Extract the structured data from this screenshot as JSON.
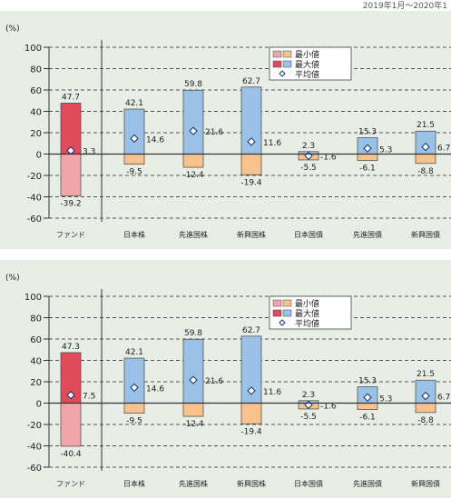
{
  "header_note": "2019年1月〜2020年1",
  "chart_data": [
    {
      "type": "bar",
      "unit_label": "(%)",
      "y_ticks": [
        100,
        80,
        60,
        40,
        20,
        0,
        -20,
        -40,
        -60
      ],
      "ylim": [
        -60,
        100
      ],
      "categories": [
        "ファンド",
        "日本株",
        "先進国株",
        "新興国株",
        "日本国債",
        "先進国債",
        "新興国債"
      ],
      "series": [
        {
          "name": "最大値",
          "values": [
            47.7,
            42.1,
            59.8,
            62.7,
            2.3,
            15.3,
            21.5
          ]
        },
        {
          "name": "最小値",
          "values": [
            -39.2,
            -9.5,
            -12.4,
            -19.4,
            -5.5,
            -6.1,
            -8.8
          ]
        },
        {
          "name": "平均値",
          "values": [
            3.3,
            14.6,
            21.6,
            11.6,
            -1.6,
            5.3,
            6.7
          ]
        }
      ],
      "max_labels": [
        "47.7",
        "42.1",
        "59.8",
        "62.7",
        "2.3",
        "15.3",
        "21.5"
      ],
      "min_labels": [
        "-39.2",
        "-9.5",
        "-12.4",
        "-19.4",
        "-5.5",
        "-6.1",
        "-8.8"
      ],
      "avg_labels": [
        "3.3",
        "14.6",
        "21.6",
        "11.6",
        "-1.6",
        "5.3",
        "6.7"
      ],
      "legend": {
        "position": "top-right",
        "entries": [
          "最小値",
          "最大値",
          "平均値"
        ]
      },
      "colors": {
        "fund_max": "#e04a5a",
        "fund_min": "#f0a6a8",
        "asset_max": "#9cc1e6",
        "asset_min": "#f7c28e",
        "axis": "#333333",
        "grid": "#555555"
      }
    },
    {
      "type": "bar",
      "unit_label": "(%)",
      "y_ticks": [
        100,
        80,
        60,
        40,
        20,
        0,
        -20,
        -40,
        -60
      ],
      "ylim": [
        -60,
        100
      ],
      "categories": [
        "ファンド",
        "日本株",
        "先進国株",
        "新興国株",
        "日本国債",
        "先進国債",
        "新興国債"
      ],
      "series": [
        {
          "name": "最大値",
          "values": [
            47.3,
            42.1,
            59.8,
            62.7,
            2.3,
            15.3,
            21.5
          ]
        },
        {
          "name": "最小値",
          "values": [
            -40.4,
            -9.5,
            -12.4,
            -19.4,
            -5.5,
            -6.1,
            -8.8
          ]
        },
        {
          "name": "平均値",
          "values": [
            7.5,
            14.6,
            21.6,
            11.6,
            -1.6,
            5.3,
            6.7
          ]
        }
      ],
      "max_labels": [
        "47.3",
        "42.1",
        "59.8",
        "62.7",
        "2.3",
        "15.3",
        "21.5"
      ],
      "min_labels": [
        "-40.4",
        "-9.5",
        "-12.4",
        "-19.4",
        "-5.5",
        "-6.1",
        "-8.8"
      ],
      "avg_labels": [
        "7.5",
        "14.6",
        "21.6",
        "11.6",
        "-1.6",
        "5.3",
        "6.7"
      ],
      "legend": {
        "position": "top-right",
        "entries": [
          "最小値",
          "最大値",
          "平均値"
        ]
      },
      "colors": {
        "fund_max": "#e04a5a",
        "fund_min": "#f0a6a8",
        "asset_max": "#9cc1e6",
        "asset_min": "#f7c28e",
        "axis": "#333333",
        "grid": "#555555"
      }
    }
  ]
}
